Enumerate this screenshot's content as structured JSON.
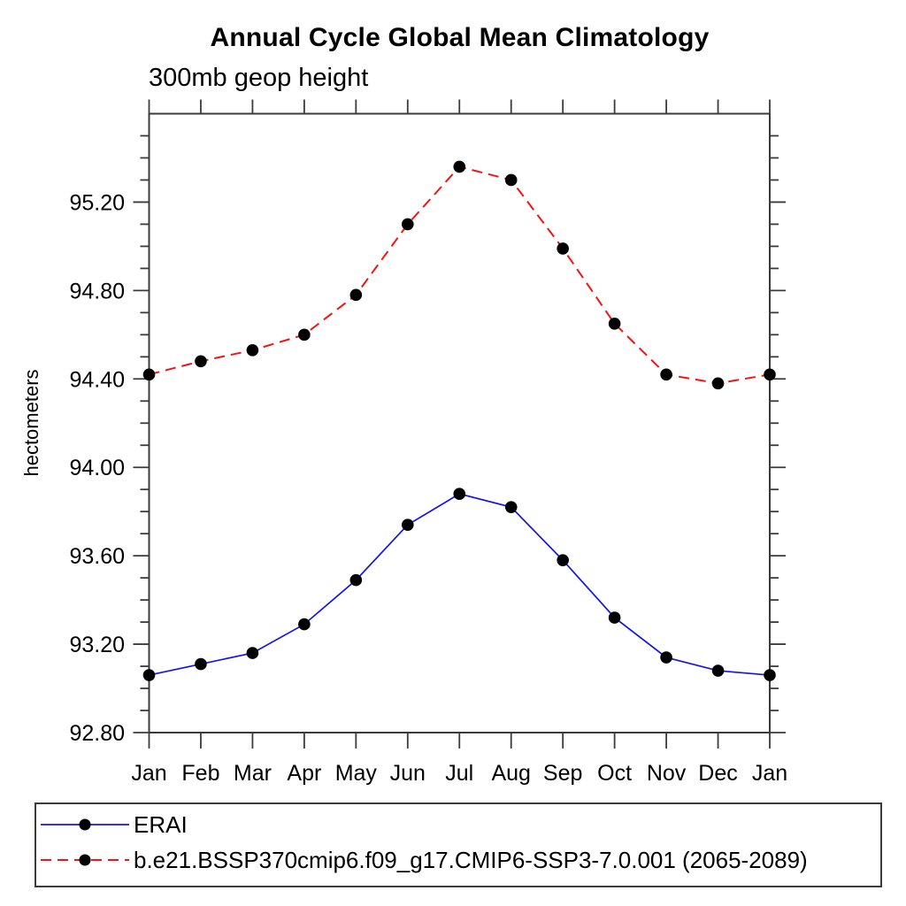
{
  "chart_data": {
    "type": "line",
    "title": "Annual Cycle Global Mean Climatology",
    "subtitle": "300mb geop height",
    "ylabel": "hectometers",
    "categories": [
      "Jan",
      "Feb",
      "Mar",
      "Apr",
      "May",
      "Jun",
      "Jul",
      "Aug",
      "Sep",
      "Oct",
      "Nov",
      "Dec",
      "Jan"
    ],
    "ylim": [
      92.8,
      95.6
    ],
    "ytick_major_interval": 0.4,
    "ytick_minor_interval": 0.1,
    "ytick_labels": [
      "92.80",
      "93.20",
      "93.60",
      "94.00",
      "94.40",
      "94.80",
      "95.20"
    ],
    "grid": false,
    "legend_position": "bottom",
    "axis_color": "#3b3b3b",
    "series": [
      {
        "name": "ERAI",
        "color": "#1414e6",
        "line_style": "solid",
        "marker": "circle",
        "marker_color": "#000000",
        "values": [
          93.06,
          93.11,
          93.16,
          93.29,
          93.49,
          93.74,
          93.88,
          93.82,
          93.58,
          93.32,
          93.14,
          93.08,
          93.06
        ]
      },
      {
        "name": "b.e21.BSSP370cmip6.f09_g17.CMIP6-SSP3-7.0.001 (2065-2089)",
        "color": "#f01414",
        "line_style": "dashed",
        "marker": "circle",
        "marker_color": "#000000",
        "values": [
          94.42,
          94.48,
          94.53,
          94.6,
          94.78,
          95.1,
          95.36,
          95.3,
          94.99,
          94.65,
          94.42,
          94.38,
          94.42
        ]
      }
    ]
  }
}
